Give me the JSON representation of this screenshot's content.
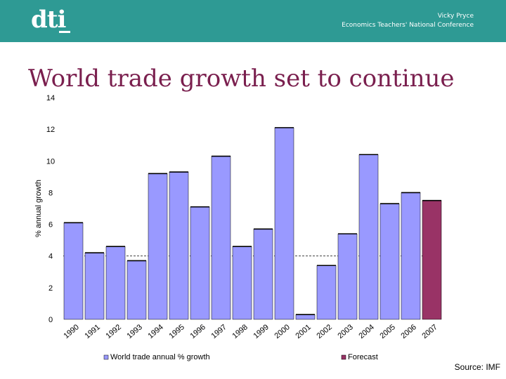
{
  "header": {
    "logo_text": "dti",
    "presenter_name": "Vicky Pryce",
    "event_name": "Economics Teachers' National Conference",
    "background_color": "#2e9a94"
  },
  "slide": {
    "title": "World trade growth set to continue",
    "source": "Source: IMF"
  },
  "chart_data": {
    "type": "bar",
    "categories": [
      "1990",
      "1991",
      "1992",
      "1993",
      "1994",
      "1995",
      "1996",
      "1997",
      "1998",
      "1999",
      "2000",
      "2001",
      "2002",
      "2003",
      "2004",
      "2005",
      "2006",
      "2007"
    ],
    "series": [
      {
        "name": "World trade annual % growth",
        "values": [
          6.1,
          4.2,
          4.6,
          3.7,
          9.2,
          9.3,
          7.1,
          10.3,
          4.6,
          5.7,
          12.1,
          0.3,
          3.4,
          5.4,
          10.4,
          7.3,
          8.0,
          null
        ],
        "color": "#9999ff"
      },
      {
        "name": "Forecast",
        "values": [
          null,
          null,
          null,
          null,
          null,
          null,
          null,
          null,
          null,
          null,
          null,
          null,
          null,
          null,
          null,
          null,
          null,
          7.5
        ],
        "color": "#993366"
      }
    ],
    "ylabel": "% annual growth",
    "xlabel": "",
    "ylim": [
      0,
      14
    ],
    "yticks": [
      0,
      2,
      4,
      6,
      8,
      10,
      12,
      14
    ],
    "reference_line": 4,
    "legend_position": "bottom",
    "grid": false
  }
}
